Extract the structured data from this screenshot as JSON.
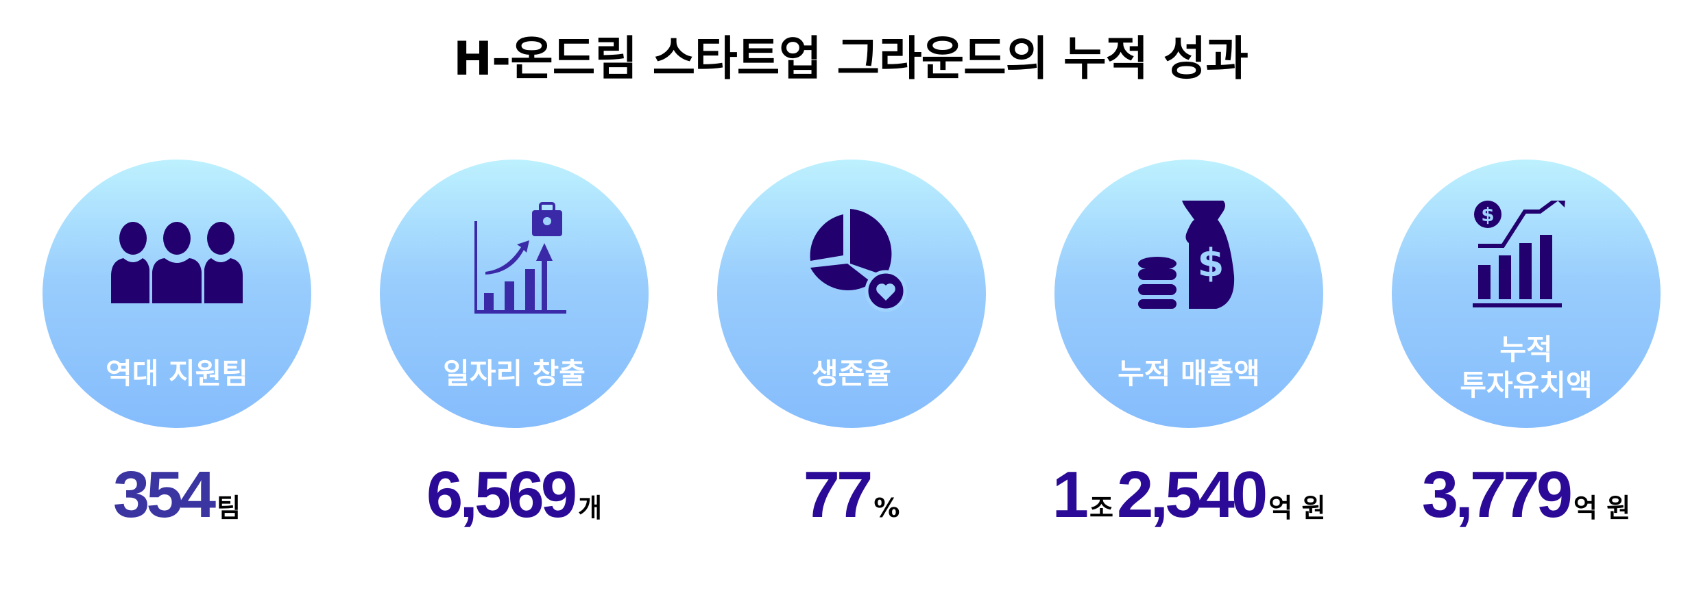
{
  "title": "H-온드림 스타트업 그라운드의 누적 성과",
  "colors": {
    "circle_top": "#bdf1fe",
    "circle_bottom": "#85bcfc",
    "icon": "#22006e",
    "number": "#2a0a96",
    "number_first": "#3a35a0"
  },
  "stats": [
    {
      "icon": "people-icon",
      "label": "역대 지원팀",
      "value": "354",
      "unit": "팀"
    },
    {
      "icon": "growth-chart-briefcase-icon",
      "label": "일자리 창출",
      "value": "6,569",
      "unit": "개"
    },
    {
      "icon": "pie-chart-heart-icon",
      "label": "생존율",
      "value": "77",
      "unit": "%"
    },
    {
      "icon": "money-bag-coins-icon",
      "label": "누적 매출액",
      "value_major": "1",
      "unit_major": "조",
      "value": "2,540",
      "unit": "억 원"
    },
    {
      "icon": "investment-chart-icon",
      "label_line1": "누적",
      "label_line2": "투자유치액",
      "value": "3,779",
      "unit": "억 원"
    }
  ]
}
